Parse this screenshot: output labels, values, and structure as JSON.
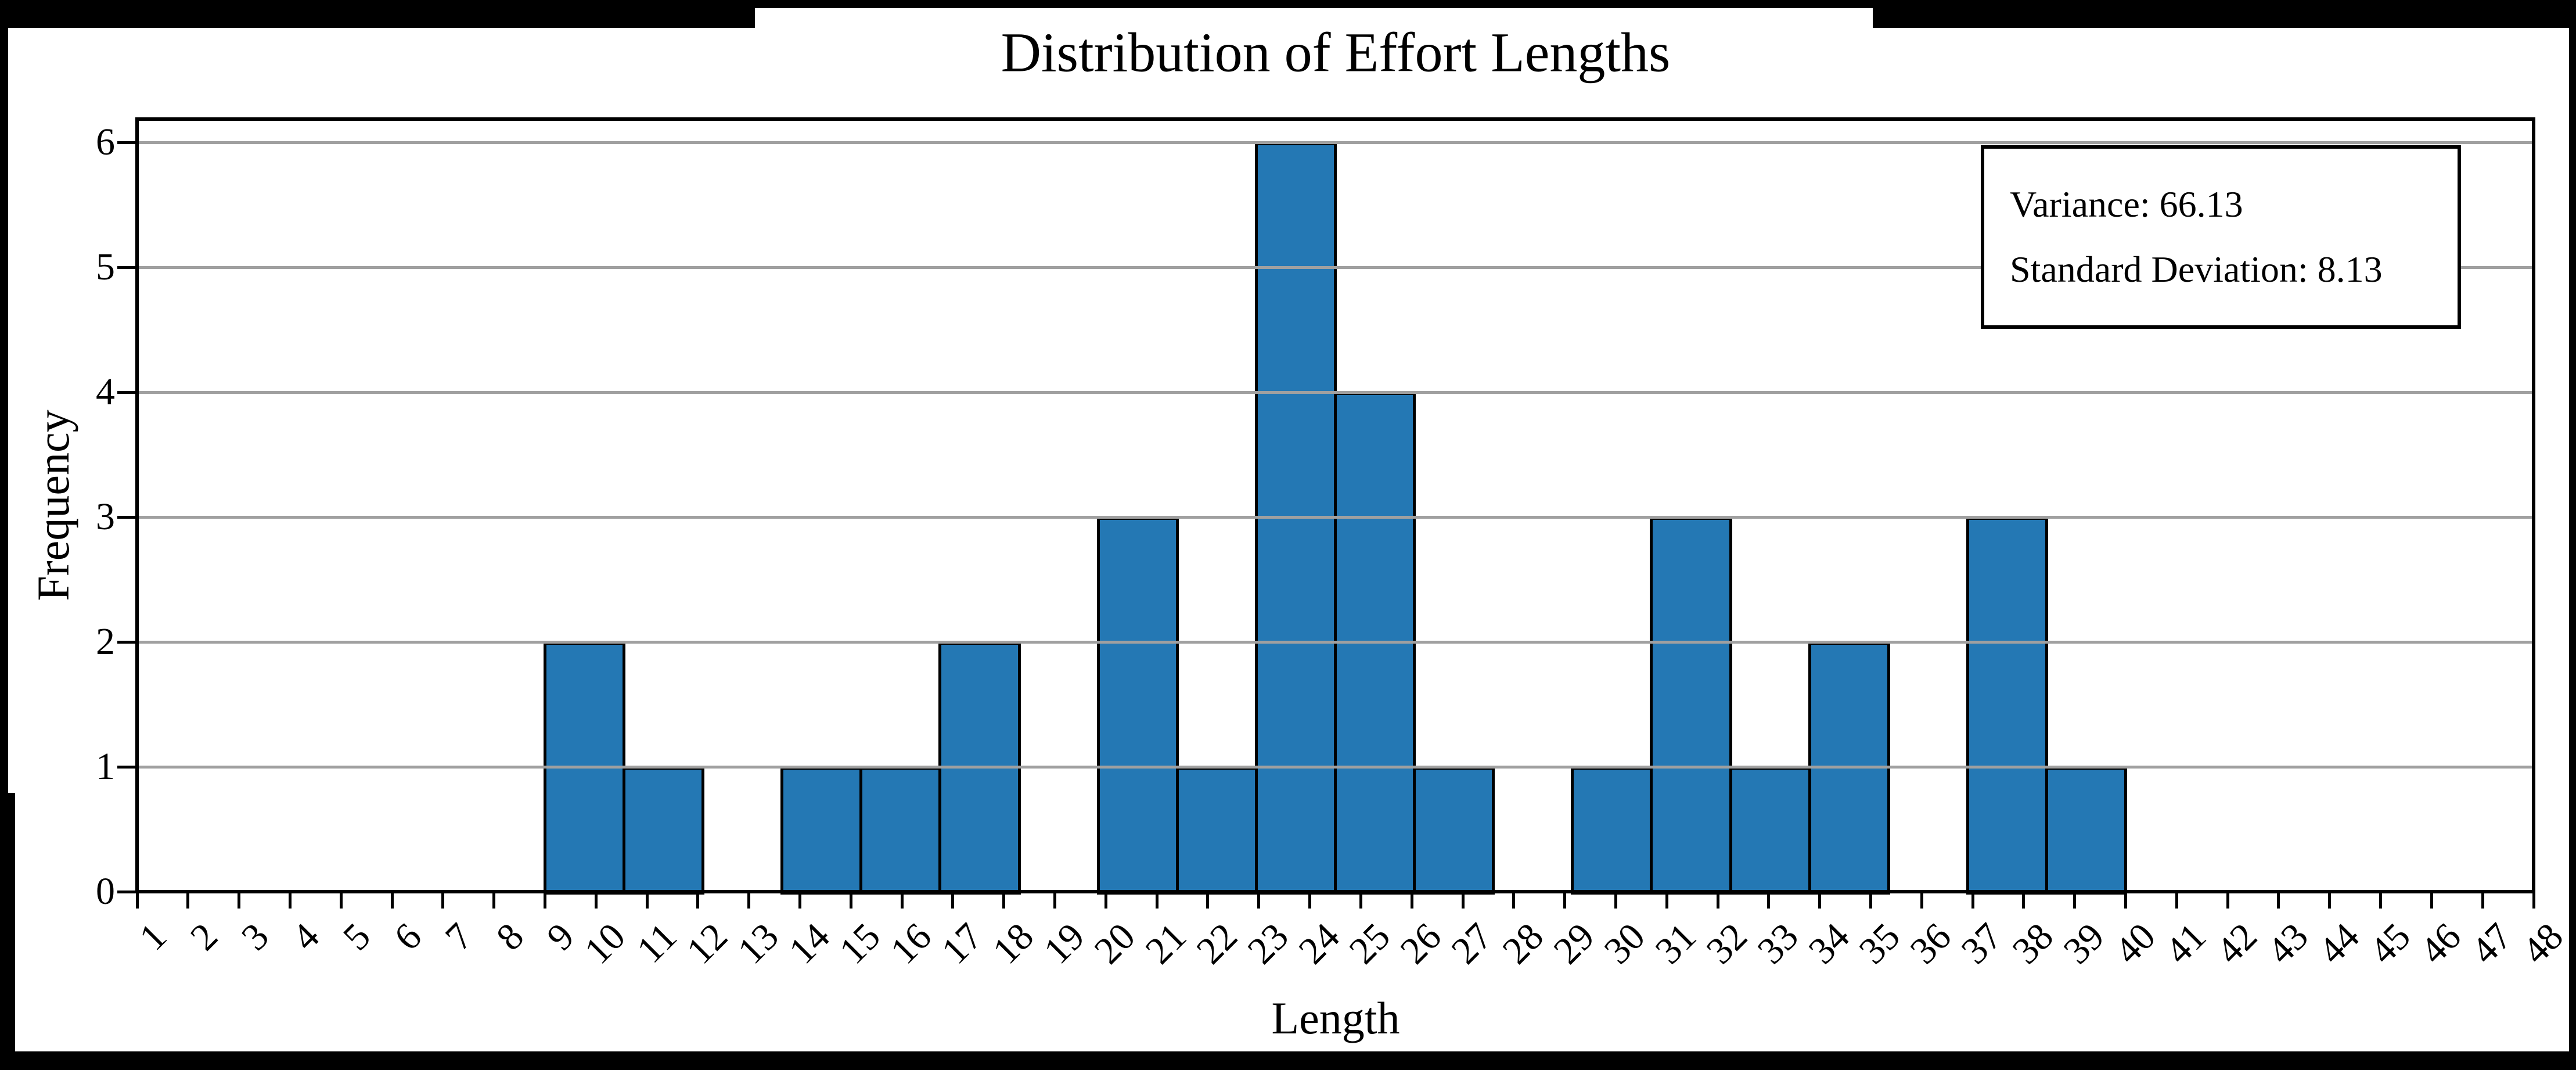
{
  "window": {
    "background": "#000000"
  },
  "chart_data": {
    "type": "bar",
    "subtype": "histogram",
    "title": "Distribution of Effort Lengths",
    "xlabel": "Length",
    "ylabel": "Frequency",
    "x_tick_labels": [
      1,
      2,
      3,
      4,
      5,
      6,
      7,
      8,
      9,
      10,
      11,
      12,
      13,
      14,
      15,
      16,
      17,
      18,
      19,
      20,
      21,
      22,
      23,
      24,
      25,
      26,
      27,
      28,
      29,
      30,
      31,
      32,
      33,
      34,
      35,
      36,
      37,
      38,
      39,
      40,
      41,
      42,
      43,
      44,
      45,
      46,
      47,
      48
    ],
    "y_tick_labels": [
      0,
      1,
      2,
      3,
      4,
      5,
      6
    ],
    "xlim": [
      1,
      48
    ],
    "ylim": [
      0,
      6.19
    ],
    "grid": "horizontal-only, drawn above bars",
    "legend_position": "none",
    "bin_start": 9.0,
    "bin_width": 1.55,
    "bin_edges": [
      9.0,
      10.55,
      12.1,
      13.65,
      15.2,
      16.75,
      18.3,
      19.85,
      21.4,
      22.95,
      24.5,
      26.05,
      27.6,
      29.15,
      30.7,
      32.25,
      33.8,
      35.35,
      36.9,
      38.45,
      40.0
    ],
    "frequencies": [
      2,
      1,
      0,
      1,
      1,
      2,
      0,
      3,
      1,
      6,
      4,
      1,
      0,
      1,
      3,
      1,
      2,
      0,
      3,
      1
    ],
    "total_count": 33,
    "annotation": {
      "lines": [
        "Variance: 66.13",
        "Standard Deviation: 8.13"
      ]
    },
    "colors": {
      "bar_fill": "#2478b4",
      "bar_edge": "#000000",
      "gridline": "#a0a0a0",
      "spine": "#000000",
      "text": "#000000",
      "plot_background": "#ffffff"
    }
  }
}
